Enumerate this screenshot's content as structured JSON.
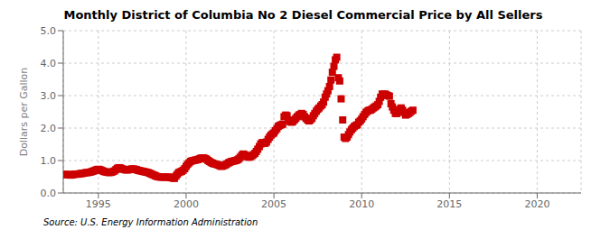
{
  "chart_data": {
    "type": "scatter",
    "title": "Monthly District of Columbia No 2 Diesel Commercial Price by All Sellers",
    "ylabel": "Dollars per Gallon",
    "annotations": [
      "Source: U.S. Energy Information Administration"
    ],
    "color": "#CC0000",
    "marker": "square",
    "grid": true,
    "xlim": [
      1993.0,
      2022.5
    ],
    "xticks": [
      1995,
      2000,
      2005,
      2010,
      2015,
      2020
    ],
    "ylim": [
      0.0,
      5.0
    ],
    "yticks": [
      {
        "value": 0.0,
        "label": "0.0"
      },
      {
        "value": 1.0,
        "label": "1.0"
      },
      {
        "value": 2.0,
        "label": "2.0"
      },
      {
        "value": 3.0,
        "label": "3.0"
      },
      {
        "value": 4.0,
        "label": "4.0"
      },
      {
        "value": 5.0,
        "label": "5.0"
      }
    ],
    "x": [
      1993.08,
      1993.17,
      1993.25,
      1993.33,
      1993.42,
      1993.5,
      1993.58,
      1993.67,
      1993.75,
      1993.83,
      1993.92,
      1994.0,
      1994.08,
      1994.17,
      1994.25,
      1994.33,
      1994.42,
      1994.5,
      1994.58,
      1994.67,
      1994.75,
      1994.83,
      1994.92,
      1995.0,
      1995.08,
      1995.17,
      1995.25,
      1995.33,
      1995.42,
      1995.5,
      1995.58,
      1995.67,
      1995.75,
      1995.83,
      1995.92,
      1996.0,
      1996.08,
      1996.17,
      1996.25,
      1996.33,
      1996.42,
      1996.5,
      1996.58,
      1996.67,
      1996.75,
      1996.83,
      1996.92,
      1997.0,
      1997.08,
      1997.17,
      1997.25,
      1997.33,
      1997.42,
      1997.5,
      1997.58,
      1997.67,
      1997.75,
      1997.83,
      1997.92,
      1998.0,
      1998.08,
      1998.17,
      1998.25,
      1998.33,
      1998.42,
      1998.5,
      1998.58,
      1998.67,
      1998.75,
      1998.83,
      1998.92,
      1999.0,
      1999.08,
      1999.17,
      1999.25,
      1999.33,
      1999.42,
      1999.5,
      1999.58,
      1999.67,
      1999.75,
      1999.83,
      1999.92,
      2000.0,
      2000.08,
      2000.17,
      2000.25,
      2000.33,
      2000.42,
      2000.5,
      2000.58,
      2000.67,
      2000.75,
      2000.83,
      2000.92,
      2001.0,
      2001.08,
      2001.17,
      2001.25,
      2001.33,
      2001.42,
      2001.5,
      2001.58,
      2001.67,
      2001.75,
      2001.83,
      2001.92,
      2002.0,
      2002.08,
      2002.17,
      2002.25,
      2002.33,
      2002.42,
      2002.5,
      2002.58,
      2002.67,
      2002.75,
      2002.83,
      2002.92,
      2003.0,
      2003.08,
      2003.17,
      2003.25,
      2003.33,
      2003.42,
      2003.5,
      2003.58,
      2003.67,
      2003.75,
      2003.83,
      2003.92,
      2004.0,
      2004.08,
      2004.17,
      2004.25,
      2004.33,
      2004.42,
      2004.5,
      2004.58,
      2004.67,
      2004.75,
      2004.83,
      2004.92,
      2005.0,
      2005.08,
      2005.17,
      2005.25,
      2005.33,
      2005.42,
      2005.5,
      2005.58,
      2005.67,
      2005.75,
      2005.83,
      2005.92,
      2006.0,
      2006.08,
      2006.17,
      2006.25,
      2006.33,
      2006.42,
      2006.5,
      2006.58,
      2006.67,
      2006.75,
      2006.83,
      2006.92,
      2007.0,
      2007.08,
      2007.17,
      2007.25,
      2007.33,
      2007.42,
      2007.5,
      2007.58,
      2007.67,
      2007.75,
      2007.83,
      2007.92,
      2008.0,
      2008.08,
      2008.17,
      2008.25,
      2008.33,
      2008.42,
      2008.5,
      2008.58,
      2008.67,
      2008.75,
      2008.83,
      2008.92,
      2009.0,
      2009.08,
      2009.17,
      2009.25,
      2009.33,
      2009.42,
      2009.5,
      2009.58,
      2009.67,
      2009.75,
      2009.83,
      2009.92,
      2010.0,
      2010.08,
      2010.17,
      2010.25,
      2010.33,
      2010.42,
      2010.5,
      2010.58,
      2010.67,
      2010.75,
      2010.83,
      2010.92,
      2011.0,
      2011.08,
      2011.17,
      2011.25,
      2011.33,
      2011.42,
      2011.5,
      2011.58,
      2011.67,
      2011.75,
      2011.83,
      2011.92,
      2012.0,
      2012.08,
      2012.17,
      2012.25,
      2012.33,
      2012.42,
      2012.5,
      2012.58,
      2012.67,
      2012.75,
      2012.83,
      2012.92
    ],
    "values": [
      0.57,
      0.57,
      0.57,
      0.56,
      0.55,
      0.56,
      0.57,
      0.58,
      0.58,
      0.58,
      0.59,
      0.6,
      0.6,
      0.61,
      0.62,
      0.63,
      0.63,
      0.64,
      0.65,
      0.67,
      0.68,
      0.7,
      0.72,
      0.73,
      0.72,
      0.7,
      0.68,
      0.66,
      0.65,
      0.64,
      0.63,
      0.63,
      0.64,
      0.66,
      0.68,
      0.72,
      0.76,
      0.78,
      0.77,
      0.75,
      0.73,
      0.72,
      0.71,
      0.71,
      0.72,
      0.73,
      0.74,
      0.74,
      0.73,
      0.72,
      0.7,
      0.69,
      0.68,
      0.67,
      0.66,
      0.65,
      0.64,
      0.63,
      0.61,
      0.59,
      0.57,
      0.55,
      0.53,
      0.51,
      0.5,
      0.49,
      0.49,
      0.49,
      0.49,
      0.49,
      0.49,
      0.49,
      0.48,
      0.47,
      0.46,
      0.45,
      0.52,
      0.58,
      0.63,
      0.65,
      0.67,
      0.7,
      0.75,
      0.82,
      0.88,
      0.93,
      0.97,
      0.99,
      1.0,
      1.01,
      1.02,
      1.03,
      1.05,
      1.07,
      1.08,
      1.08,
      1.06,
      1.04,
      1.0,
      0.97,
      0.94,
      0.92,
      0.9,
      0.89,
      0.88,
      0.86,
      0.84,
      0.82,
      0.83,
      0.85,
      0.87,
      0.9,
      0.93,
      0.95,
      0.97,
      0.98,
      0.99,
      1.0,
      1.02,
      1.05,
      1.1,
      1.16,
      1.2,
      1.18,
      1.15,
      1.12,
      1.1,
      1.12,
      1.15,
      1.18,
      1.22,
      1.28,
      1.35,
      1.43,
      1.51,
      1.55,
      1.55,
      1.53,
      1.57,
      1.65,
      1.72,
      1.78,
      1.82,
      1.85,
      1.92,
      1.98,
      2.05,
      2.08,
      2.1,
      2.12,
      2.35,
      2.4,
      2.38,
      2.25,
      2.2,
      2.18,
      2.2,
      2.25,
      2.3,
      2.35,
      2.4,
      2.42,
      2.45,
      2.42,
      2.35,
      2.3,
      2.25,
      2.22,
      2.25,
      2.3,
      2.38,
      2.45,
      2.52,
      2.58,
      2.62,
      2.68,
      2.72,
      2.8,
      2.95,
      3.05,
      3.15,
      3.28,
      3.48,
      3.72,
      3.9,
      4.1,
      4.18,
      3.55,
      3.45,
      2.9,
      2.25,
      1.72,
      1.68,
      1.72,
      1.8,
      1.88,
      1.95,
      2.0,
      2.05,
      2.08,
      2.1,
      2.18,
      2.22,
      2.28,
      2.35,
      2.42,
      2.48,
      2.52,
      2.55,
      2.55,
      2.58,
      2.62,
      2.65,
      2.68,
      2.72,
      2.82,
      2.95,
      3.05,
      3.02,
      3.05,
      3.02,
      3.0,
      2.98,
      2.75,
      2.65,
      2.55,
      2.45,
      2.45,
      2.52,
      2.58,
      2.62,
      2.55,
      2.48,
      2.4,
      2.42,
      2.45,
      2.48,
      2.52,
      2.55
    ]
  }
}
